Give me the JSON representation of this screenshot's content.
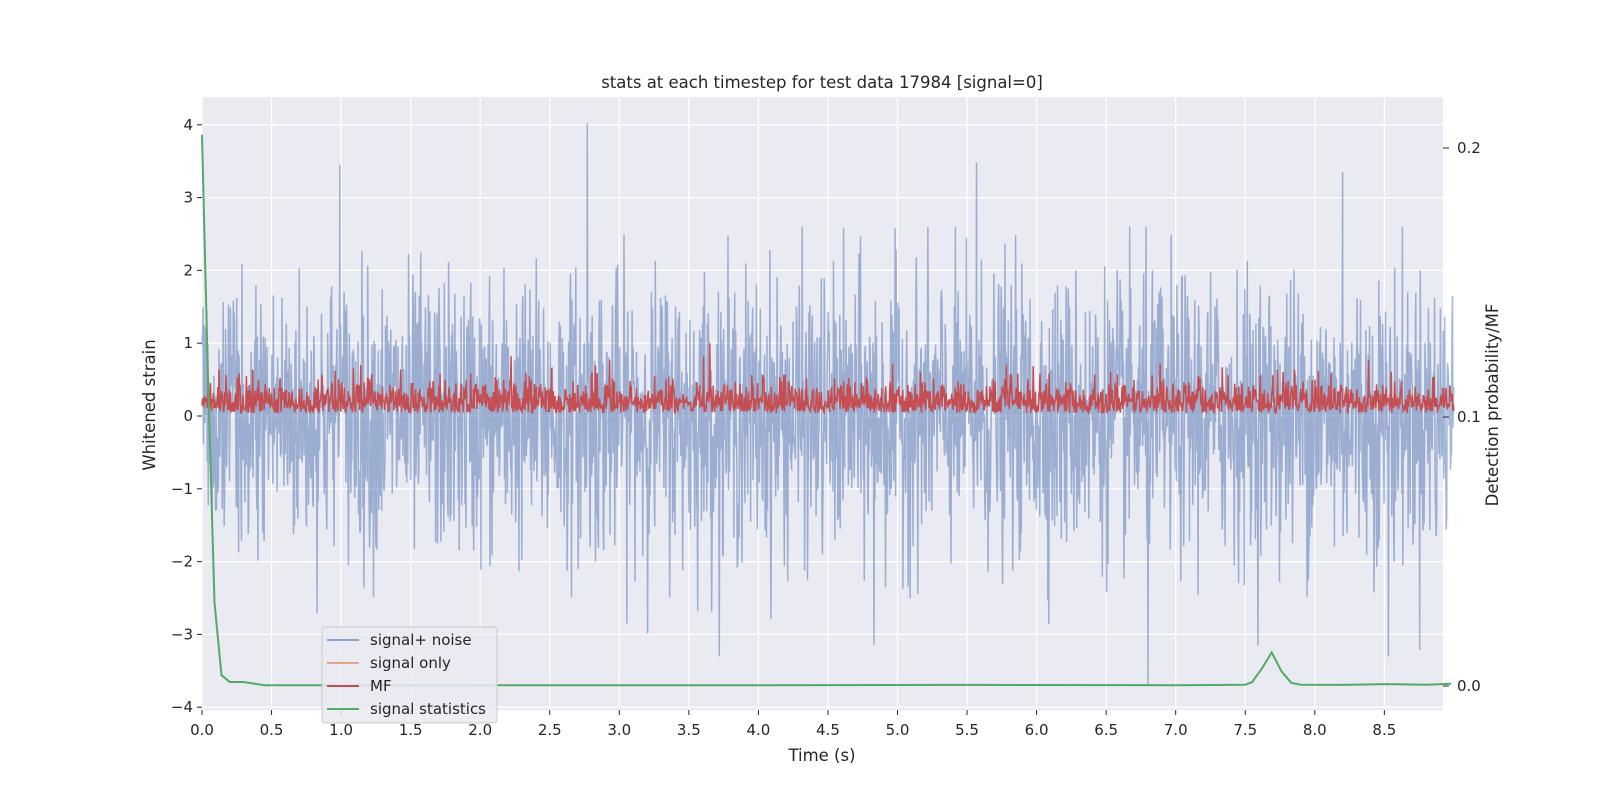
{
  "chart_data": {
    "type": "line",
    "title": "stats at each timestep for test data 17984 [signal=0]",
    "xlabel": "Time (s)",
    "ylabel": "Whitened strain",
    "y2label": "Detection probability/MF",
    "xlim": [
      0.0,
      9.0
    ],
    "ylim": [
      -4.2,
      4.4
    ],
    "y2lim": [
      -0.01,
      0.22
    ],
    "x_ticks": [
      "0.0",
      "0.5",
      "1.0",
      "1.5",
      "2.0",
      "2.5",
      "3.0",
      "3.5",
      "4.0",
      "4.5",
      "5.0",
      "5.5",
      "6.0",
      "6.5",
      "7.0",
      "7.5",
      "8.0",
      "8.5"
    ],
    "y_ticks": [
      "4",
      "3",
      "2",
      "1",
      "0",
      "−1",
      "−2",
      "−3",
      "−4"
    ],
    "y2_ticks": [
      "0.2",
      "0.1",
      "0.0"
    ],
    "grid": true,
    "legend_position": "lower-left",
    "background": "#eaeaf2",
    "series": [
      {
        "name": "signal+ noise",
        "axis": "left",
        "color": "#4c72b0",
        "style": "dense noise",
        "x_range": [
          0.0,
          9.0
        ],
        "approx_range": [
          -3.7,
          4.0
        ],
        "peaks": [
          {
            "x": 0.99,
            "y": 3.45
          },
          {
            "x": 2.77,
            "y": 4.02
          },
          {
            "x": 5.57,
            "y": 3.48
          },
          {
            "x": 8.2,
            "y": 3.35
          },
          {
            "x": 6.8,
            "y": -3.7
          },
          {
            "x": 4.83,
            "y": -3.15
          },
          {
            "x": 8.53,
            "y": -3.3
          }
        ]
      },
      {
        "name": "signal only",
        "axis": "left",
        "color": "#dd8452",
        "values_note": "",
        "y_value": 0.0
      },
      {
        "name": "MF",
        "axis": "left",
        "color": "#c44e52",
        "style": "dense noise",
        "x_range": [
          0.0,
          9.0
        ],
        "approx_range": [
          0.0,
          1.0
        ],
        "typical_peak": 0.7,
        "max": {
          "x": 3.65,
          "y": 1.0
        }
      },
      {
        "name": "signal statistics",
        "axis": "right",
        "color": "#55a868",
        "x": [
          0.0,
          0.04,
          0.09,
          0.14,
          0.2,
          0.3,
          0.45,
          1.0,
          2.0,
          4.0,
          5.5,
          7.0,
          7.5,
          7.55,
          7.62,
          7.69,
          7.76,
          7.83,
          7.9,
          8.2,
          8.5,
          8.8,
          9.0
        ],
        "y": [
          0.205,
          0.12,
          0.031,
          0.004,
          0.0015,
          0.0015,
          0.0003,
          0.0003,
          0.0003,
          0.0003,
          0.0004,
          0.0003,
          0.0005,
          0.0015,
          0.0065,
          0.0125,
          0.0055,
          0.0012,
          0.0005,
          0.0004,
          0.0007,
          0.0005,
          0.0008
        ]
      }
    ]
  }
}
